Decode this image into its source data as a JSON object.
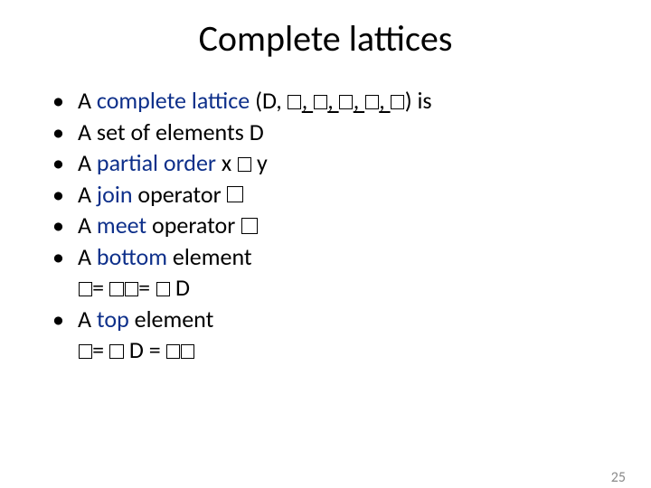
{
  "title": "Complete lattices",
  "bullets": [
    {
      "pre": "A ",
      "emph": "complete lattice",
      "post": " (D, ",
      "sym_count": 5,
      "post2": ") is",
      "sym_underline": true
    },
    {
      "pre": "A set of elements D"
    },
    {
      "pre": "A ",
      "emph": "partial order",
      "post": " x ",
      "sym_count": 1,
      "post2": " y"
    },
    {
      "pre": "A ",
      "emph": "join",
      "post": " operator ",
      "sym_count": 1
    },
    {
      "pre": "A ",
      "emph": "meet",
      "post": " operator ",
      "sym_count": 1
    },
    {
      "pre": "A ",
      "emph": "bottom",
      "post": " element"
    },
    {
      "pre": "A ",
      "emph": "top",
      "post": " element"
    }
  ],
  "sub1": {
    "seq": [
      "gl",
      "= ",
      "gl",
      "gl",
      "= ",
      "gl",
      " D"
    ]
  },
  "sub2": {
    "seq": [
      "gl",
      "= ",
      "gl",
      " D = ",
      "gl",
      "gl"
    ]
  },
  "page_number": "25",
  "colors": {
    "background": "#ffffff",
    "text": "#000000",
    "emph": "#0d2f8a",
    "page_num": "#8a8a8a"
  },
  "fontsize": {
    "title": 40,
    "body": 26,
    "page_num": 16
  }
}
